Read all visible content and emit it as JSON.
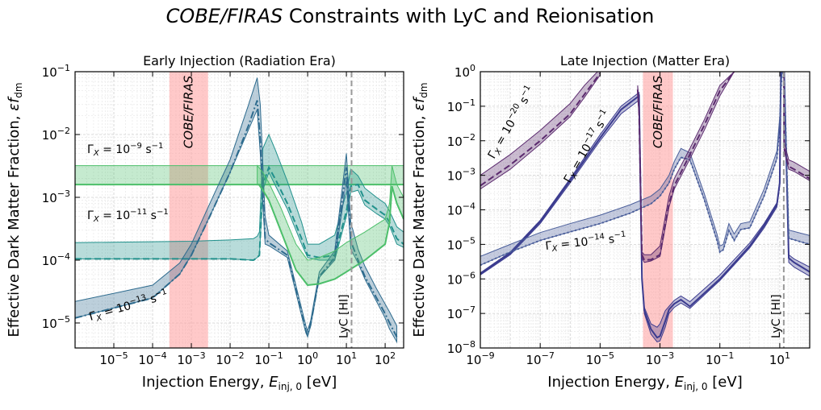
{
  "figure": {
    "title_italic": "COBE/FIRAS",
    "title_rest": " Constraints with LyC and Reionisation"
  },
  "chart_data": [
    {
      "type": "line",
      "title": "Early Injection (Radiation Era)",
      "xlabel": "Injection Energy, E_inj,0 [eV]",
      "ylabel": "Effective Dark Matter Fraction, εf_dm",
      "xscale": "log",
      "yscale": "log",
      "xlim": [
        1e-06,
        300
      ],
      "ylim": [
        4e-06,
        0.1
      ],
      "x_ticks": [
        "10⁻⁵",
        "10⁻⁴",
        "10⁻³",
        "10⁻²",
        "10⁻¹",
        "10⁰",
        "10¹",
        "10²"
      ],
      "y_ticks": [
        "10⁻⁵",
        "10⁻⁴",
        "10⁻³",
        "10⁻²",
        "10⁻¹"
      ],
      "grid": true,
      "cobe_band": {
        "label": "COBE/FIRAS",
        "x_range": [
          0.00027,
          0.0027
        ]
      },
      "lyc_line": {
        "label": "LyC [HI]",
        "x": 13.6
      },
      "series": [
        {
          "name": "Γ_X = 10⁻⁹ s⁻¹",
          "color": "#4cbf6a",
          "style": "solid",
          "x": [
            1e-06,
            0.001,
            0.01,
            0.04,
            0.05,
            0.057,
            0.062,
            0.1,
            0.3,
            0.7,
            1,
            2,
            5,
            10,
            30,
            60,
            100,
            130,
            150,
            200,
            300
          ],
          "y_low": [
            0.0016,
            0.0016,
            0.0016,
            0.0016,
            0.0016,
            0.0016,
            0.0016,
            0.0016,
            0.0016,
            0.0016,
            0.0016,
            0.0016,
            0.0016,
            0.0016,
            0.0016,
            0.0016,
            0.0016,
            0.0016,
            0.0016,
            0.0016,
            0.0016
          ],
          "y_high": [
            0.0032,
            0.0032,
            0.0032,
            0.0032,
            0.0032,
            0.0032,
            0.0032,
            0.0032,
            0.0032,
            0.0032,
            0.0032,
            0.0032,
            0.0032,
            0.0032,
            0.0032,
            0.0032,
            0.0032,
            0.0032,
            0.0032,
            0.0032,
            0.0032
          ],
          "y": [
            0.0016,
            0.0016,
            0.0016,
            0.0016,
            0.0016,
            0.0016,
            0.0016,
            0.0016,
            0.0016,
            0.0016,
            0.0016,
            0.0016,
            0.0016,
            0.0016,
            0.0016,
            0.0016,
            0.0016,
            0.0016,
            0.0016,
            0.0016,
            0.0016
          ]
        },
        {
          "name": "Γ_X = 10⁻¹¹ s⁻¹",
          "color": "#21918c",
          "style": "dashed",
          "x": [
            1e-06,
            0.001,
            0.01,
            0.04,
            0.05,
            0.057,
            0.07,
            0.1,
            0.15,
            0.3,
            0.7,
            1,
            2,
            5,
            10,
            13,
            20,
            30,
            60,
            100,
            130,
            200,
            300
          ],
          "y_low": [
            0.000105,
            0.000105,
            0.000105,
            0.0001,
            0.00011,
            0.00012,
            0.0013,
            0.0025,
            0.0015,
            0.00065,
            0.00018,
            0.00011,
            0.0001,
            0.0001,
            0.0005,
            0.0012,
            0.0013,
            0.00075,
            0.00055,
            0.00045,
            0.00035,
            0.00018,
            0.00016
          ],
          "y_high": [
            0.00019,
            0.0002,
            0.00021,
            0.00022,
            0.00024,
            0.00028,
            0.006,
            0.01,
            0.0055,
            0.0018,
            0.0004,
            0.00018,
            0.00018,
            0.00025,
            0.0012,
            0.0028,
            0.0022,
            0.0014,
            0.001,
            0.0008,
            0.0006,
            0.00034,
            0.00028
          ],
          "y": [
            0.000105,
            0.000105,
            0.000105,
            0.0001,
            0.00011,
            0.00012,
            0.0016,
            0.003,
            0.0019,
            0.0008,
            0.00022,
            0.00012,
            0.00011,
            0.00012,
            0.0006,
            0.0015,
            0.0016,
            0.0009,
            0.00065,
            0.00052,
            0.0004,
            0.00022,
            0.00018
          ]
        },
        {
          "name": "Γ_X = 10⁻¹³ s⁻¹",
          "color": "#2e6b8e",
          "style": "dashdot",
          "x": [
            1e-06,
            0.0001,
            0.0005,
            0.001,
            0.003,
            0.01,
            0.03,
            0.05,
            0.06,
            0.08,
            0.1,
            0.3,
            0.7,
            0.9,
            1,
            1.2,
            2,
            5,
            10,
            13,
            20,
            30,
            60,
            100,
            130,
            200
          ],
          "y_low": [
            1.2e-05,
            2.5e-05,
            6e-05,
            0.00012,
            0.0005,
            0.0025,
            0.012,
            0.025,
            0.005,
            0.00018,
            0.00017,
            0.00011,
            1.3e-05,
            7e-06,
            6e-06,
            9e-06,
            5.3e-05,
            0.0001,
            0.0018,
            0.00015,
            9e-05,
            5e-05,
            2.2e-05,
            1.2e-05,
            8e-06,
            5e-06
          ],
          "y_high": [
            2.2e-05,
            4e-05,
            9e-05,
            0.00018,
            0.0008,
            0.004,
            0.03,
            0.08,
            0.03,
            0.0005,
            0.00025,
            0.00014,
            1.7e-05,
            9e-06,
            7.5e-06,
            1.1e-05,
            6.5e-05,
            0.00014,
            0.005,
            0.0004,
            0.00015,
            8e-05,
            3.5e-05,
            2e-05,
            1.5e-05,
            9e-06
          ],
          "y": [
            1.2e-05,
            2.5e-05,
            6e-05,
            0.00012,
            0.0005,
            0.0025,
            0.014,
            0.035,
            0.008,
            0.00022,
            0.00019,
            0.00012,
            1.4e-05,
            7.5e-06,
            6.5e-06,
            9.5e-06,
            5.5e-05,
            0.00011,
            0.003,
            0.0002,
            0.0001,
            5.5e-05,
            2.5e-05,
            1.4e-05,
            1e-05,
            6e-06
          ]
        },
        {
          "name": "",
          "color": "#4cbf6a",
          "style": "solid",
          "x": [
            0.05,
            0.055,
            0.07,
            0.1,
            0.2,
            0.5,
            1,
            2,
            5,
            10,
            30,
            60,
            100,
            130,
            150,
            200,
            300
          ],
          "y_low": [
            0.0016,
            0.0016,
            0.0013,
            0.0009,
            0.0003,
            7e-05,
            4e-05,
            4.2e-05,
            5e-05,
            6.5e-05,
            0.0001,
            0.00014,
            0.00018,
            0.0004,
            0.0015,
            0.0008,
            0.00045
          ],
          "y_high": [
            0.0032,
            0.003,
            0.0025,
            0.0017,
            0.0007,
            0.00018,
            0.0001,
            0.00011,
            0.00014,
            0.00019,
            0.00028,
            0.00037,
            0.00045,
            0.0008,
            0.0032,
            0.0016,
            0.001
          ],
          "y": [
            0.0016,
            0.0016,
            0.0013,
            0.0009,
            0.0003,
            7e-05,
            4e-05,
            4.2e-05,
            5e-05,
            6.5e-05,
            0.0001,
            0.00014,
            0.00018,
            0.0004,
            0.0015,
            0.0008,
            0.00045
          ]
        }
      ]
    },
    {
      "type": "line",
      "title": "Late Injection (Matter Era)",
      "xlabel": "Injection Energy, E_inj,0 [eV]",
      "ylabel": "Effective Dark Matter Fraction, εf_dm",
      "xscale": "log",
      "yscale": "log",
      "xlim": [
        1e-09,
        100
      ],
      "ylim": [
        1e-08,
        1
      ],
      "x_ticks": [
        "10⁻⁹",
        "10⁻⁷",
        "10⁻⁵",
        "10⁻³",
        "10⁻¹",
        "10¹"
      ],
      "y_ticks": [
        "10⁻⁸",
        "10⁻⁷",
        "10⁻⁶",
        "10⁻⁵",
        "10⁻⁴",
        "10⁻³",
        "10⁻²",
        "10⁻¹",
        "10⁰"
      ],
      "grid": true,
      "cobe_band": {
        "label": "COBE/FIRAS",
        "x_range": [
          0.00027,
          0.0027
        ]
      },
      "lyc_line": {
        "label": "LyC [HI]",
        "x": 13.6
      },
      "series": [
        {
          "name": "Γ_X = 10⁻²⁰ s⁻¹",
          "color": "#5b2a6e",
          "style": "dashed",
          "x": [
            1e-09,
            1e-08,
            1e-07,
            1e-06,
            3e-06,
            1e-05
          ],
          "y_low": [
            0.0004,
            0.0015,
            0.008,
            0.05,
            0.18,
            0.8
          ],
          "y_high": [
            0.001,
            0.004,
            0.02,
            0.12,
            0.4,
            1.2
          ],
          "y": [
            0.0005,
            0.002,
            0.01,
            0.06,
            0.22,
            0.9
          ]
        },
        {
          "name": "Γ_X = 10⁻¹⁷ s⁻¹",
          "color": "#3b3b8f",
          "style": "solid",
          "x": [
            1e-09,
            1e-08,
            1e-07,
            1e-06,
            1e-05,
            5e-05,
            0.0002,
            0.0002,
            0.00025,
            0.0003,
            0.0005,
            0.0008,
            0.001,
            0.0015,
            0.002,
            0.003,
            0.005,
            0.01,
            0.1,
            1,
            3,
            8,
            10,
            10.5,
            11,
            12,
            13.6,
            14,
            20,
            30,
            100
          ],
          "y_low": [
            1.3e-06,
            5e-06,
            4e-05,
            0.0006,
            0.01,
            0.06,
            0.15,
            0.15,
            1e-06,
            1e-07,
            2.5e-08,
            1.5e-08,
            1.6e-08,
            4e-08,
            1e-07,
            1.5e-07,
            2e-07,
            1.4e-07,
            9e-07,
            8e-06,
            3e-05,
            0.00012,
            0.0005,
            0.05,
            1,
            1,
            1,
            1,
            3e-06,
            2.2e-06,
            1.2e-06
          ],
          "y_high": [
            1.5e-06,
            6e-06,
            5e-05,
            0.0008,
            0.015,
            0.1,
            0.25,
            0.25,
            1e-06,
            1.5e-07,
            5e-08,
            4e-08,
            5e-08,
            1.2e-07,
            1.6e-07,
            2.4e-07,
            3.2e-07,
            2.2e-07,
            1.3e-06,
            1.1e-05,
            4e-05,
            0.00016,
            0.0007,
            0.08,
            1,
            1,
            1,
            1,
            5e-06,
            3.8e-06,
            2.2e-06
          ],
          "y": [
            1.4e-06,
            5.5e-06,
            4.5e-05,
            0.0007,
            0.012,
            0.08,
            0.2,
            0.2,
            1e-06,
            1.2e-07,
            3.5e-08,
            2e-08,
            2.2e-08,
            6e-08,
            1.3e-07,
            1.9e-07,
            2.5e-07,
            1.6e-07,
            1e-06,
            9e-06,
            3.5e-05,
            0.00014,
            0.0006,
            0.06,
            1,
            1,
            1,
            1,
            4e-06,
            3e-06,
            1.6e-06
          ]
        },
        {
          "name": "Γ_X = 10⁻¹⁴ s⁻¹",
          "color": "#4a5e9a",
          "style": "dotted",
          "x": [
            1e-09,
            1e-08,
            1e-07,
            1e-06,
            1e-05,
            0.0001,
            0.0005,
            0.001,
            0.002,
            0.003,
            0.005,
            0.01,
            0.03,
            0.08,
            0.1,
            0.13,
            0.2,
            0.3,
            0.5,
            1,
            3,
            8,
            10,
            11,
            12,
            13.6,
            14,
            20,
            100
          ],
          "y_low": [
            2.5e-06,
            6e-06,
            1.3e-05,
            2.3e-05,
            4e-05,
            8e-05,
            0.00015,
            0.00025,
            0.0006,
            0.0015,
            0.0033,
            0.0028,
            0.0002,
            1.3e-05,
            6e-06,
            7e-06,
            2.5e-05,
            1.3e-05,
            2.7e-05,
            3e-05,
            0.00025,
            0.003,
            0.03,
            0.3,
            1,
            1,
            1,
            1.5e-05,
            1e-05
          ],
          "y_high": [
            4.5e-06,
            1e-05,
            2.2e-05,
            4e-05,
            7e-05,
            0.00014,
            0.00025,
            0.0004,
            0.001,
            0.0025,
            0.006,
            0.0045,
            0.0003,
            2e-05,
            9e-06,
            1e-05,
            4e-05,
            2e-05,
            4e-05,
            4.5e-05,
            0.0004,
            0.005,
            0.05,
            0.5,
            1,
            1,
            1,
            2.6e-05,
            1.8e-05
          ],
          "y": [
            2.5e-06,
            6e-06,
            1.3e-05,
            2.3e-05,
            4e-05,
            8e-05,
            0.00015,
            0.00025,
            0.0006,
            0.0015,
            0.0033,
            0.0028,
            0.0002,
            1.3e-05,
            6e-06,
            7e-06,
            2.5e-05,
            1.3e-05,
            2.7e-05,
            3e-05,
            0.00025,
            0.003,
            0.03,
            0.3,
            1,
            1,
            1,
            1.5e-05,
            1e-05
          ]
        },
        {
          "name": "",
          "color": "#5b2a6e",
          "style": "dashed",
          "x": [
            0.00018,
            0.0002,
            0.00025,
            0.0003,
            0.0005,
            0.001,
            0.002,
            0.003,
            0.01,
            0.03,
            0.1,
            0.3
          ],
          "y_low": [
            0.2,
            0.05,
            4e-06,
            3e-06,
            3.3e-06,
            4.5e-06,
            0.00012,
            0.0004,
            0.003,
            0.02,
            0.2,
            1
          ],
          "y_high": [
            0.4,
            0.1,
            6e-06,
            5e-06,
            5e-06,
            9e-06,
            0.00025,
            0.0008,
            0.006,
            0.04,
            0.4,
            1
          ],
          "y": [
            0.3,
            0.07,
            5e-06,
            3.5e-06,
            3.6e-06,
            5e-06,
            0.00015,
            0.0005,
            0.004,
            0.028,
            0.28,
            1
          ]
        },
        {
          "name": "",
          "color": "#5b2a6e",
          "style": "dashed",
          "x": [
            13.6,
            14,
            20,
            30,
            100
          ],
          "y_low": [
            1,
            0.005,
            0.0015,
            0.0013,
            0.0007
          ],
          "y_high": [
            1,
            0.009,
            0.0028,
            0.0024,
            0.0013
          ],
          "y": [
            1,
            0.006,
            0.0018,
            0.0015,
            0.0008
          ]
        }
      ]
    }
  ],
  "annotations": {
    "left": [
      "Γ_X = 10^{−9} s^{−1}",
      "Γ_X = 10^{−11} s^{−1}",
      "Γ_X = 10^{−13} s^{−1}"
    ],
    "right": [
      "Γ_X = 10^{−20} s^{−1}",
      "Γ_X = 10^{−17} s^{−1}",
      "Γ_X = 10^{−14} s^{−1}"
    ]
  }
}
